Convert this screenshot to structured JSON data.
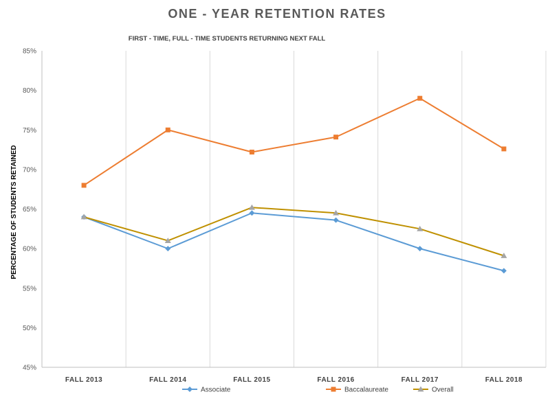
{
  "chart_data": {
    "type": "line",
    "title": "ONE - YEAR RETENTION RATES",
    "subtitle": "FIRST - TIME, FULL - TIME STUDENTS RETURNING NEXT FALL",
    "xlabel": "",
    "ylabel": "PERCENTAGE OF STUDENTS RETAINED",
    "ylim": [
      45,
      85
    ],
    "yticks": [
      "45%",
      "50%",
      "55%",
      "60%",
      "65%",
      "70%",
      "75%",
      "80%",
      "85%"
    ],
    "categories": [
      "FALL 2013",
      "FALL 2014",
      "FALL 2015",
      "FALL 2016",
      "FALL 2017",
      "FALL 2018"
    ],
    "grid": "vertical",
    "legend_position": "bottom",
    "series": [
      {
        "name": "Associate",
        "color": "#5B9BD5",
        "marker": "diamond",
        "values": [
          64.0,
          60.0,
          64.5,
          63.6,
          60.0,
          57.2
        ]
      },
      {
        "name": "Baccalaureate",
        "color": "#ED7D31",
        "marker": "square",
        "values": [
          68.0,
          75.0,
          72.2,
          74.1,
          79.0,
          72.6
        ]
      },
      {
        "name": "Overall",
        "color": "#BF9000",
        "marker": "triangle",
        "marker_color": "#A5A5A5",
        "values": [
          64.0,
          61.0,
          65.2,
          64.5,
          62.5,
          59.1
        ]
      }
    ]
  }
}
